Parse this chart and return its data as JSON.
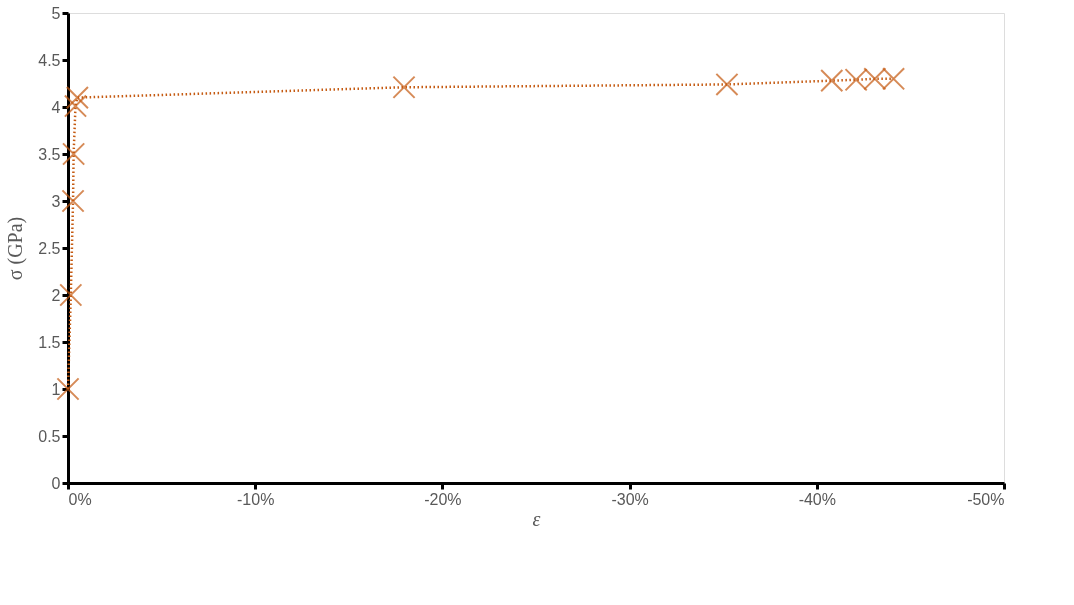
{
  "chart_data": {
    "type": "line",
    "xlabel": "ε",
    "ylabel": "σ (GPa)",
    "x": [
      0,
      -0.15,
      -0.27,
      -0.3,
      -0.4,
      -0.5,
      -17.95,
      -35.2,
      -40.8,
      -42.1,
      -43.1,
      -44.1
    ],
    "series": [
      {
        "color": "#c55a11",
        "values": [
          1.0,
          2.0,
          3.0,
          3.5,
          4.01,
          4.1,
          4.21,
          4.24,
          4.28,
          4.29,
          4.3,
          4.3
        ]
      }
    ],
    "xlim": [
      0,
      -50
    ],
    "xticks": [
      {
        "value": 0,
        "label": "0%"
      },
      {
        "value": -10,
        "label": "-10%"
      },
      {
        "value": -20,
        "label": "-20%"
      },
      {
        "value": -30,
        "label": "-30%"
      },
      {
        "value": -40,
        "label": "-40%"
      },
      {
        "value": -50,
        "label": "-50%"
      }
    ],
    "ylim": [
      0,
      5
    ],
    "yticks": [
      0,
      0.5,
      1,
      1.5,
      2,
      2.5,
      3,
      3.5,
      4,
      4.5,
      5
    ],
    "grid": false,
    "marker": "cross",
    "line_style": "dotted"
  }
}
